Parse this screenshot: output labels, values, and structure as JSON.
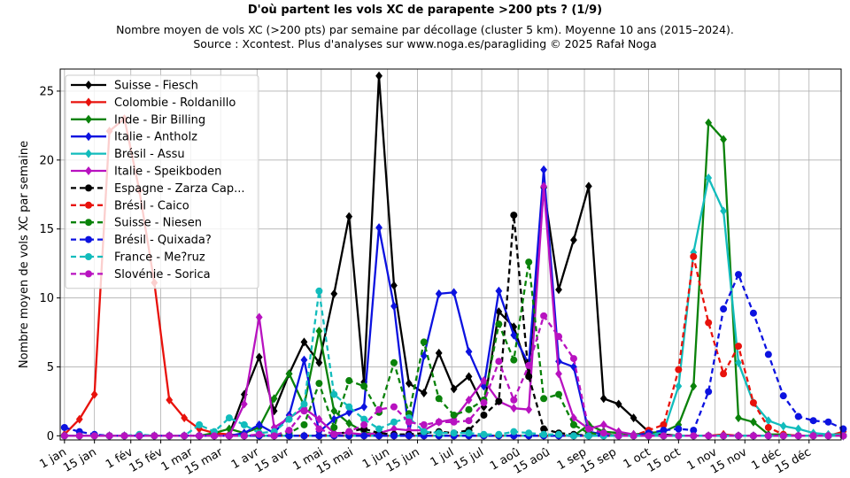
{
  "title": "D'où partent les vols XC de parapente >200 pts ? (1/9)",
  "subtitle_line1": "Nombre moyen de vols XC (>200 pts) par semaine par décollage (cluster 5 km). Moyenne 10 ans (2015–2024).",
  "subtitle_line2": "Source : Xcontest. Plus d'analyses sur www.noga.es/paragliding © 2025 Rafał Noga",
  "chart_data": {
    "type": "line",
    "ylabel": "Nombre moyen de vols XC par semaine",
    "xlabel": "",
    "ylim": [
      -0.3,
      26.6
    ],
    "xlim": [
      -2,
      363
    ],
    "yticks": [
      0,
      5,
      10,
      15,
      20,
      25
    ],
    "xticks": [
      {
        "day": 0,
        "label": "1 jan"
      },
      {
        "day": 14,
        "label": "15 jan"
      },
      {
        "day": 31,
        "label": "1 fév"
      },
      {
        "day": 45,
        "label": "15 fév"
      },
      {
        "day": 59,
        "label": "1 mar"
      },
      {
        "day": 73,
        "label": "15 mar"
      },
      {
        "day": 90,
        "label": "1 avr"
      },
      {
        "day": 104,
        "label": "15 avr"
      },
      {
        "day": 120,
        "label": "1 mai"
      },
      {
        "day": 134,
        "label": "15 mai"
      },
      {
        "day": 151,
        "label": "1 jun"
      },
      {
        "day": 165,
        "label": "15 jun"
      },
      {
        "day": 181,
        "label": "1 jul"
      },
      {
        "day": 195,
        "label": "15 jul"
      },
      {
        "day": 212,
        "label": "1 aoû"
      },
      {
        "day": 226,
        "label": "15 aoû"
      },
      {
        "day": 243,
        "label": "1 sep"
      },
      {
        "day": 257,
        "label": "15 sep"
      },
      {
        "day": 273,
        "label": "1 oct"
      },
      {
        "day": 287,
        "label": "15 oct"
      },
      {
        "day": 304,
        "label": "1 nov"
      },
      {
        "day": 318,
        "label": "15 nov"
      },
      {
        "day": 334,
        "label": "1 déc"
      },
      {
        "day": 348,
        "label": "15 déc"
      }
    ],
    "grid": true,
    "legend_position": "top-left",
    "series": [
      {
        "name": "Suisse - Fiesch",
        "color": "#000000",
        "dash": false,
        "marker": "diamond",
        "values": [
          0,
          0,
          0,
          0,
          0,
          0,
          0,
          0,
          0,
          0,
          0,
          0.1,
          3,
          5.7,
          1.8,
          4.5,
          6.8,
          5.3,
          10.3,
          15.9,
          3.9,
          26.1,
          10.9,
          3.8,
          3.1,
          6,
          3.4,
          4.3,
          2.1,
          9,
          7.9,
          4.6,
          18,
          10.6,
          14.2,
          18.1,
          2.7,
          2.3,
          1.3,
          0.3,
          0.1,
          0,
          0,
          0,
          0,
          0,
          0,
          0,
          0,
          0,
          0,
          0,
          0
        ]
      },
      {
        "name": "Colombie - Roldanillo",
        "color": "#e8120c",
        "dash": false,
        "marker": "diamond",
        "values": [
          0.1,
          1.2,
          3,
          22.1,
          23,
          17.8,
          11.1,
          2.6,
          1.3,
          0.5,
          0.2,
          0.1,
          0,
          0,
          0,
          0,
          0,
          0,
          0,
          0,
          0,
          0,
          0,
          0,
          0,
          0,
          0,
          0,
          0,
          0,
          0,
          0,
          0,
          0,
          0,
          0,
          0,
          0,
          0,
          0,
          0,
          0,
          0,
          0,
          0.1,
          0,
          0,
          0,
          0,
          0,
          0,
          0,
          0.3
        ]
      },
      {
        "name": "Inde - Bir Billing",
        "color": "#0a820a",
        "dash": false,
        "marker": "diamond",
        "values": [
          0,
          0,
          0,
          0,
          0,
          0,
          0,
          0,
          0,
          0,
          0.2,
          0.5,
          0.2,
          0.6,
          2.7,
          4.5,
          2.2,
          7.6,
          1.8,
          0.9,
          0.3,
          0,
          0,
          0,
          0,
          0,
          0,
          0,
          0,
          0,
          0,
          0,
          0,
          0,
          0,
          0.8,
          0.3,
          0.2,
          0.1,
          0.2,
          0.3,
          0.8,
          3.6,
          22.7,
          21.5,
          1.3,
          1,
          0.1,
          0.1,
          0,
          0,
          0,
          0
        ]
      },
      {
        "name": "Italie - Antholz",
        "color": "#0c12e0",
        "dash": false,
        "marker": "diamond",
        "values": [
          0,
          0,
          0,
          0,
          0,
          0,
          0,
          0,
          0,
          0,
          0,
          0,
          0.2,
          0.8,
          0.2,
          1.5,
          5.5,
          0.3,
          1.2,
          1.7,
          2.1,
          15.1,
          9.4,
          0.2,
          5.8,
          10.3,
          10.4,
          6.1,
          3.6,
          10.5,
          7.3,
          5.2,
          19.3,
          5.4,
          5,
          0.3,
          0.1,
          0,
          0,
          0,
          0,
          0,
          0,
          0,
          0,
          0,
          0,
          0,
          0,
          0,
          0,
          0,
          0
        ]
      },
      {
        "name": "Brésil - Assu",
        "color": "#12bcbc",
        "dash": false,
        "marker": "diamond",
        "values": [
          0,
          0,
          0,
          0,
          0,
          0,
          0,
          0,
          0,
          0,
          0,
          0,
          0,
          0,
          0,
          0,
          0,
          0,
          0,
          0,
          0,
          0,
          0,
          0,
          0,
          0,
          0,
          0,
          0,
          0,
          0,
          0,
          0,
          0,
          0,
          0,
          0,
          0,
          0,
          0,
          0.3,
          3.6,
          13.3,
          18.7,
          16.3,
          5.3,
          2.4,
          1.1,
          0.7,
          0.5,
          0.2,
          0.1,
          0.1
        ]
      },
      {
        "name": "Italie - Speikboden",
        "color": "#b812c0",
        "dash": false,
        "marker": "diamond",
        "values": [
          0,
          0,
          0,
          0,
          0,
          0,
          0,
          0,
          0,
          0,
          0,
          0,
          2.3,
          8.6,
          0.6,
          1.3,
          2,
          1.2,
          0.2,
          0.2,
          0.1,
          0.2,
          0.5,
          0.4,
          0.4,
          1,
          1.2,
          2.6,
          4,
          2.5,
          2,
          1.9,
          18.1,
          4.5,
          1.3,
          0.5,
          0.8,
          0.3,
          0.1,
          0,
          0,
          0,
          0,
          0,
          0,
          0,
          0,
          0,
          0,
          0,
          0,
          0,
          0
        ]
      },
      {
        "name": "Espagne - Zarza Cap...",
        "color": "#000000",
        "dash": true,
        "marker": "circle",
        "values": [
          0,
          0,
          0,
          0,
          0,
          0,
          0,
          0,
          0,
          0,
          0,
          0,
          0,
          0,
          0,
          0,
          0,
          0,
          0.1,
          0.3,
          0.5,
          0.2,
          0.1,
          0.1,
          0.2,
          0.3,
          0.2,
          0.4,
          1.5,
          2.5,
          16,
          4.3,
          0.5,
          0.2,
          0.1,
          0,
          0,
          0,
          0,
          0,
          0,
          0,
          0,
          0,
          0,
          0,
          0,
          0,
          0,
          0,
          0,
          0,
          0
        ]
      },
      {
        "name": "Brésil - Caico",
        "color": "#e8120c",
        "dash": true,
        "marker": "circle",
        "values": [
          0,
          0,
          0,
          0,
          0,
          0,
          0,
          0,
          0,
          0,
          0,
          0,
          0,
          0,
          0,
          0,
          0,
          0,
          0,
          0,
          0,
          0,
          0,
          0,
          0,
          0,
          0,
          0,
          0,
          0,
          0,
          0,
          0,
          0,
          0,
          0,
          0,
          0,
          0,
          0.4,
          0.8,
          4.8,
          13,
          8.2,
          4.5,
          6.5,
          2.4,
          0.6,
          0.1,
          0,
          0,
          0,
          0
        ]
      },
      {
        "name": "Suisse - Niesen",
        "color": "#0a820a",
        "dash": true,
        "marker": "circle",
        "values": [
          0,
          0,
          0,
          0,
          0,
          0,
          0,
          0,
          0,
          0,
          0,
          0,
          0,
          0,
          0,
          0.2,
          0.8,
          3.8,
          0.6,
          4,
          3.6,
          1.7,
          5.3,
          1.6,
          6.8,
          2.7,
          1.5,
          1.9,
          2.6,
          8.1,
          5.5,
          12.6,
          2.7,
          3,
          0.8,
          0.2,
          0.1,
          0,
          0,
          0,
          0,
          0,
          0,
          0,
          0,
          0,
          0,
          0,
          0,
          0,
          0,
          0,
          0
        ]
      },
      {
        "name": "Brésil - Quixada?",
        "color": "#0c12e0",
        "dash": true,
        "marker": "circle",
        "values": [
          0.6,
          0.3,
          0.1,
          0,
          0,
          0,
          0,
          0,
          0,
          0,
          0,
          0,
          0,
          0,
          0,
          0,
          0,
          0,
          0,
          0,
          0,
          0,
          0,
          0,
          0,
          0,
          0,
          0,
          0,
          0,
          0,
          0,
          0,
          0,
          0,
          0,
          0,
          0,
          0,
          0.2,
          0.4,
          0.5,
          0.4,
          3.2,
          9.2,
          11.7,
          8.9,
          5.9,
          2.9,
          1.4,
          1.1,
          1,
          0.5
        ]
      },
      {
        "name": "France - Me?ruz",
        "color": "#12bcbc",
        "dash": true,
        "marker": "circle",
        "values": [
          0,
          0,
          0,
          0,
          0,
          0.1,
          0,
          0,
          0,
          0.8,
          0.3,
          1.3,
          0.8,
          0.2,
          0.3,
          1.2,
          2.3,
          10.5,
          3,
          2.1,
          1.2,
          0.5,
          1,
          1.3,
          0.3,
          0.2,
          0.2,
          0.2,
          0.1,
          0.1,
          0.3,
          0.2,
          0.1,
          0.1,
          0,
          0,
          0,
          0,
          0,
          0,
          0,
          0,
          0,
          0,
          0,
          0,
          0,
          0,
          0,
          0,
          0,
          0,
          0
        ]
      },
      {
        "name": "Slovénie - Sorica",
        "color": "#b812c0",
        "dash": true,
        "marker": "circle",
        "values": [
          0,
          0,
          0,
          0,
          0,
          0,
          0,
          0,
          0,
          0,
          0,
          0,
          0,
          0.1,
          0,
          0.4,
          1.8,
          0.5,
          0.1,
          0.3,
          0.8,
          1.9,
          2.1,
          1,
          0.8,
          1,
          1,
          1.1,
          2.4,
          5.4,
          2.6,
          5.1,
          8.7,
          7.2,
          5.6,
          0.5,
          0.2,
          0,
          0,
          0,
          0,
          0,
          0,
          0,
          0,
          0,
          0,
          0,
          0,
          0,
          0,
          0,
          0
        ]
      }
    ]
  }
}
